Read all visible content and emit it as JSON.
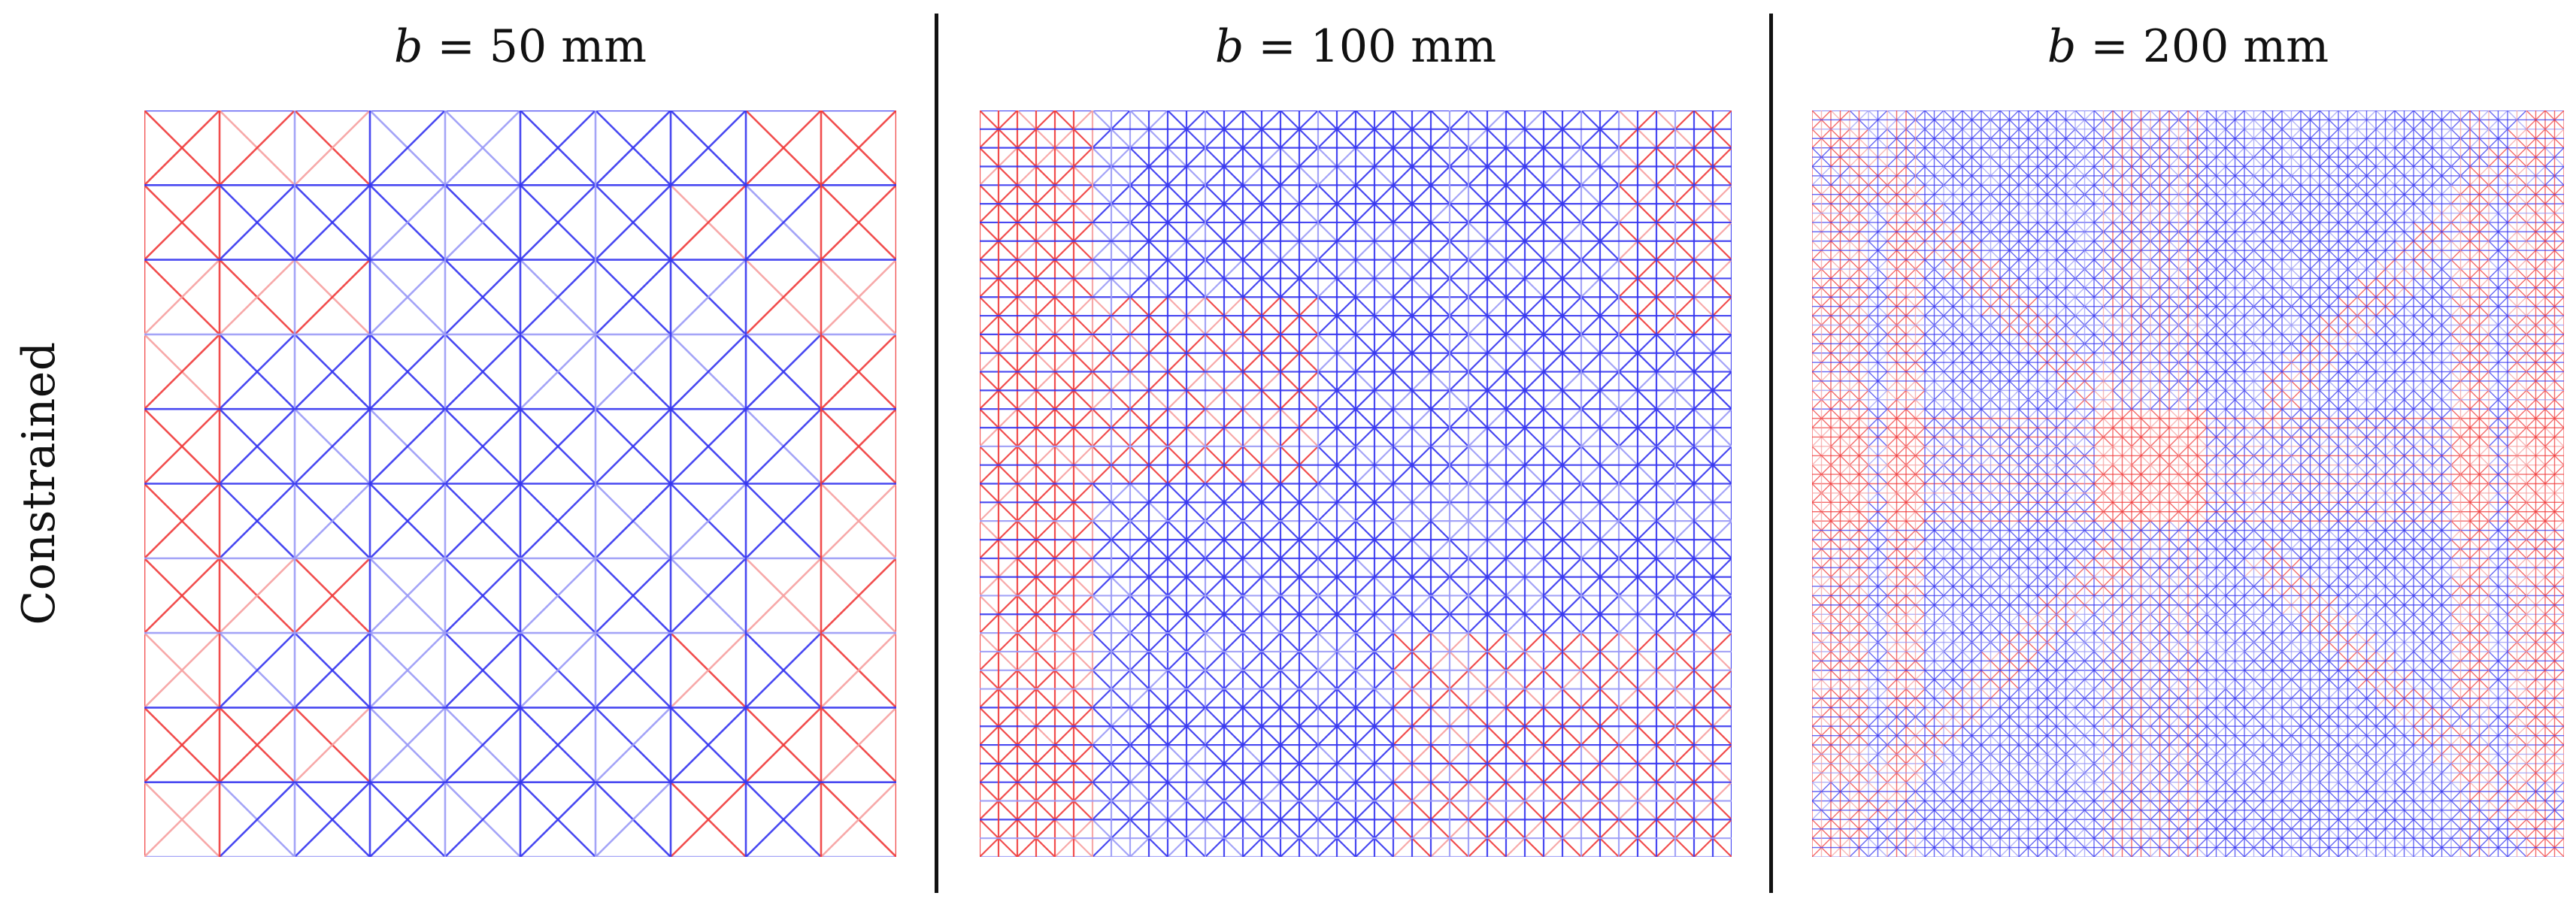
{
  "row_label": "Constrained",
  "panels": [
    {
      "symbol": "b",
      "text": " = 50 mm",
      "divisions": 10,
      "name": "panel-b50"
    },
    {
      "symbol": "b",
      "text": " = 100 mm",
      "divisions": 20,
      "name": "panel-b100"
    },
    {
      "symbol": "b",
      "text": " = 200 mm",
      "divisions": 40,
      "name": "panel-b200"
    }
  ],
  "colors": {
    "tension": "#3434f0",
    "compression": "#f03a3a",
    "faint_tension": "#9a9af6",
    "faint_compression": "#f6a0a0"
  }
}
